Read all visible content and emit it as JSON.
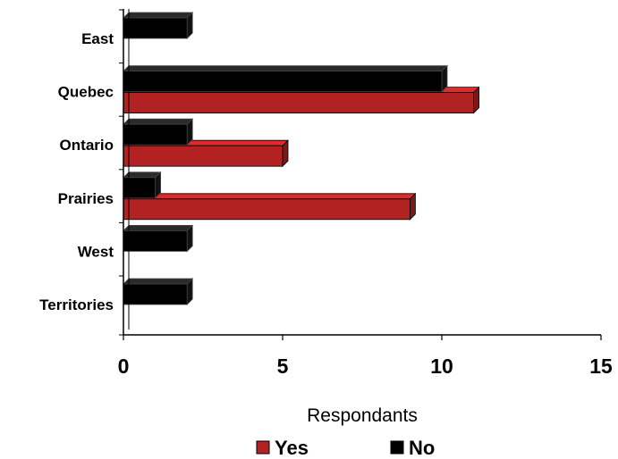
{
  "chart_data": {
    "type": "bar",
    "orientation": "horizontal",
    "style": "3d",
    "categories": [
      "East",
      "Quebec",
      "Ontario",
      "Prairies",
      "West",
      "Territories"
    ],
    "series": [
      {
        "name": "Yes",
        "color": "#B22222",
        "values": [
          0,
          11,
          5,
          9,
          0,
          0
        ]
      },
      {
        "name": "No",
        "color": "#000000",
        "values": [
          2,
          10,
          2,
          1,
          2,
          2
        ]
      }
    ],
    "xlabel": "Respondants",
    "ylabel": "",
    "xlim": [
      0,
      15
    ],
    "xticks": [
      "0",
      "5",
      "10",
      "15"
    ],
    "grid": false,
    "legend_position": "bottom"
  }
}
